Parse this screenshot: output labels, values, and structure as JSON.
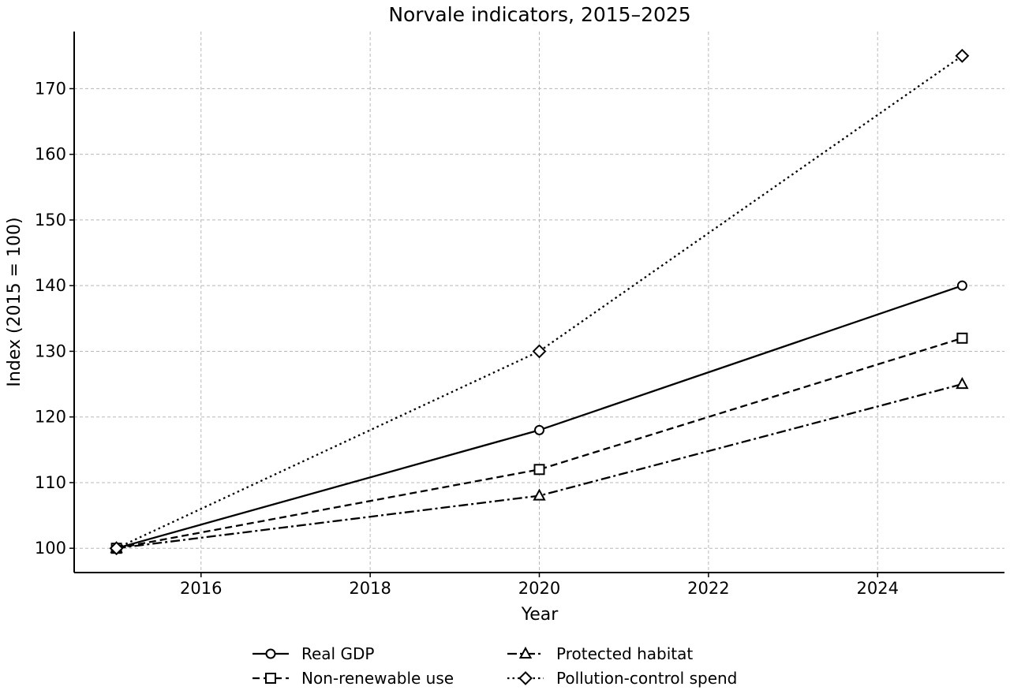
{
  "chart_data": {
    "type": "line",
    "title": "Norvale indicators, 2015–2025",
    "xlabel": "Year",
    "ylabel": "Index (2015 = 100)",
    "xlim": [
      2014.5,
      2025.5
    ],
    "ylim": [
      96.3,
      178.7
    ],
    "xticks": [
      2016,
      2018,
      2020,
      2022,
      2024
    ],
    "yticks": [
      100,
      110,
      120,
      130,
      140,
      150,
      160,
      170
    ],
    "grid": true,
    "legend_position": "bottom-center",
    "legend_columns": 2,
    "series": [
      {
        "name": "Real GDP",
        "x": [
          2015,
          2020,
          2025
        ],
        "values": [
          100,
          118,
          140
        ],
        "line_style": "solid",
        "marker": "circle",
        "color": "#000000"
      },
      {
        "name": "Non-renewable use",
        "x": [
          2015,
          2020,
          2025
        ],
        "values": [
          100,
          112,
          132
        ],
        "line_style": "dashed",
        "marker": "square",
        "color": "#000000"
      },
      {
        "name": "Protected habitat",
        "x": [
          2015,
          2020,
          2025
        ],
        "values": [
          100,
          108,
          125
        ],
        "line_style": "dashdot",
        "marker": "triangle",
        "color": "#000000"
      },
      {
        "name": "Pollution-control spend",
        "x": [
          2015,
          2020,
          2025
        ],
        "values": [
          100,
          130,
          175
        ],
        "line_style": "dotted",
        "marker": "diamond",
        "color": "#000000"
      }
    ]
  }
}
